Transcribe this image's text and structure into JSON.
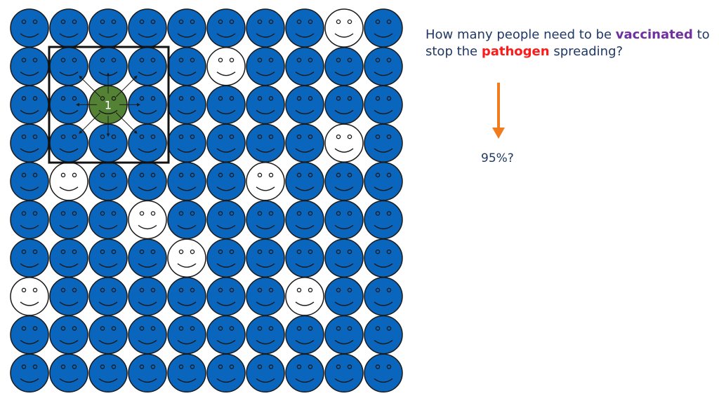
{
  "grid": {
    "rows": 10,
    "cols": 10,
    "unvaccinated": [
      [
        0,
        8
      ],
      [
        1,
        5
      ],
      [
        3,
        8
      ],
      [
        4,
        1
      ],
      [
        4,
        6
      ],
      [
        5,
        3
      ],
      [
        6,
        4
      ],
      [
        7,
        0
      ],
      [
        7,
        7
      ]
    ],
    "infected": {
      "row": 2,
      "col": 2,
      "label": "1"
    },
    "colors": {
      "vaccinated": "#0a66bd",
      "unvaccinated": "#ffffff",
      "infected": "#548235",
      "outline": "#1a1a1a",
      "arrow": "#f07c1e"
    }
  },
  "question": {
    "part1": "How many people need to be ",
    "highlight1": "vaccinated",
    "part2": " to stop the ",
    "highlight2": "pathogen",
    "part3": " spreading?",
    "highlight1_color": "#7030a0",
    "highlight2_color": "#ff1a1a"
  },
  "answer": "95%?"
}
